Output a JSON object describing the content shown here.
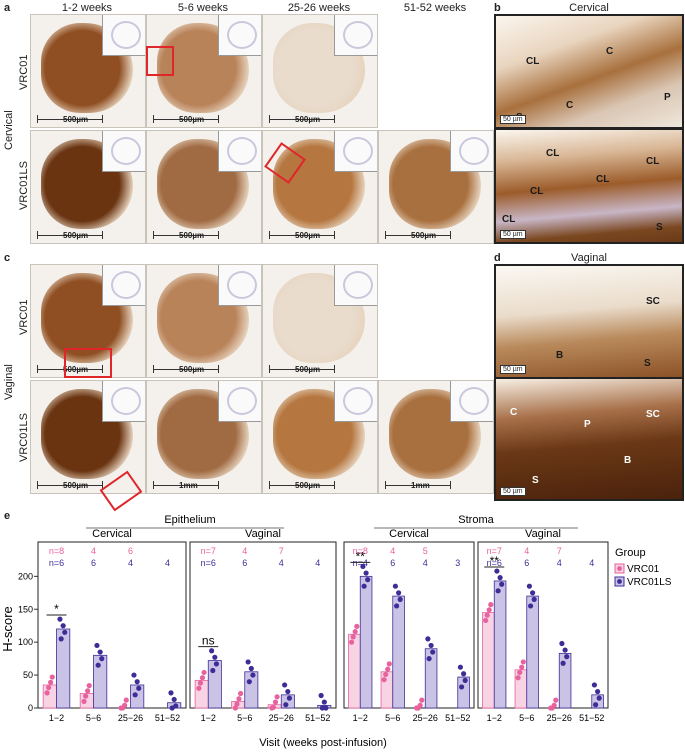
{
  "panels": {
    "a": "a",
    "b": "b",
    "c": "c",
    "d": "d",
    "e": "e"
  },
  "columns": [
    "1-2 weeks",
    "5-6 weeks",
    "25-26 weeks",
    "51-52 weeks"
  ],
  "rows": {
    "top": "VRC01",
    "bottom": "VRC01LS"
  },
  "sections": {
    "cervical": "Cervical",
    "vaginal": "Vaginal"
  },
  "cervical_tiles": [
    [
      "500µm",
      "500µm",
      "500µm",
      ""
    ],
    [
      "500µm",
      "500µm",
      "500µm",
      "500µm"
    ]
  ],
  "vaginal_tiles": [
    [
      "500µm",
      "500µm",
      "500µm",
      ""
    ],
    [
      "500µm",
      "1mm",
      "500µm",
      "1mm"
    ]
  ],
  "micro_b_top": {
    "labels": [
      "CL",
      "C",
      "C",
      "P",
      "S"
    ],
    "scale": "50 µm"
  },
  "micro_b_bottom": {
    "labels": [
      "CL",
      "CL",
      "CL",
      "CL",
      "CL",
      "S"
    ],
    "scale": "50 µm"
  },
  "micro_d_top": {
    "labels": [
      "SC",
      "B",
      "S"
    ],
    "scale": "50 µm"
  },
  "micro_d_bottom": {
    "labels": [
      "C",
      "P",
      "SC",
      "B",
      "S"
    ],
    "scale": "50 µm"
  },
  "colors": {
    "VRC01": "#e8629d",
    "VRC01LS": "#3f2d97",
    "VRC01_fill": "#f7d3e3",
    "VRC01LS_fill": "#cbc3e6",
    "brown": "#9a5a2e",
    "red": "#e0262b"
  },
  "chart_data": {
    "type": "bar",
    "title": "",
    "ylabel": "H-score",
    "xlabel": "Visit (weeks post-infusion)",
    "ylim": [
      0,
      240
    ],
    "yticks": [
      0,
      50,
      100,
      150,
      200
    ],
    "categories": [
      "1−2",
      "5−6",
      "25−26",
      "51−52"
    ],
    "legend": {
      "title": "Group",
      "entries": [
        "VRC01",
        "VRC01LS"
      ],
      "position": "right"
    },
    "groups": [
      {
        "tissue": "Epithelium",
        "site": "Cervical",
        "n_VRC01": [
          "n=8",
          "4",
          "6",
          ""
        ],
        "n_VRC01LS": [
          "n=6",
          "6",
          "4",
          "4"
        ],
        "VRC01": [
          35,
          22,
          0,
          null
        ],
        "VRC01LS": [
          120,
          80,
          35,
          8
        ],
        "sig": {
          "label": "*",
          "between": "1−2"
        }
      },
      {
        "tissue": "Epithelium",
        "site": "Vaginal",
        "n_VRC01": [
          "n=7",
          "4",
          "7",
          ""
        ],
        "n_VRC01LS": [
          "n=6",
          "6",
          "4",
          "4"
        ],
        "VRC01": [
          42,
          10,
          5,
          null
        ],
        "VRC01LS": [
          72,
          55,
          20,
          4
        ],
        "sig": {
          "label": "ns",
          "between": "1−2"
        }
      },
      {
        "tissue": "Stroma",
        "site": "Cervical",
        "n_VRC01": [
          "n=8",
          "4",
          "5",
          ""
        ],
        "n_VRC01LS": [
          "n=4",
          "6",
          "4",
          "3"
        ],
        "VRC01": [
          112,
          55,
          0,
          null
        ],
        "VRC01LS": [
          200,
          170,
          90,
          47
        ],
        "sig": {
          "label": "**",
          "between": "1−2"
        }
      },
      {
        "tissue": "Stroma",
        "site": "Vaginal",
        "n_VRC01": [
          "n=7",
          "4",
          "7",
          ""
        ],
        "n_VRC01LS": [
          "n=6",
          "6",
          "4",
          "4"
        ],
        "VRC01": [
          145,
          58,
          0,
          null
        ],
        "VRC01LS": [
          193,
          170,
          83,
          20
        ],
        "sig": {
          "label": "**",
          "between": "1−2"
        }
      }
    ],
    "headers": {
      "epithelium": "Epithelium",
      "stroma": "Stroma",
      "cervical": "Cervical",
      "vaginal": "Vaginal"
    }
  }
}
